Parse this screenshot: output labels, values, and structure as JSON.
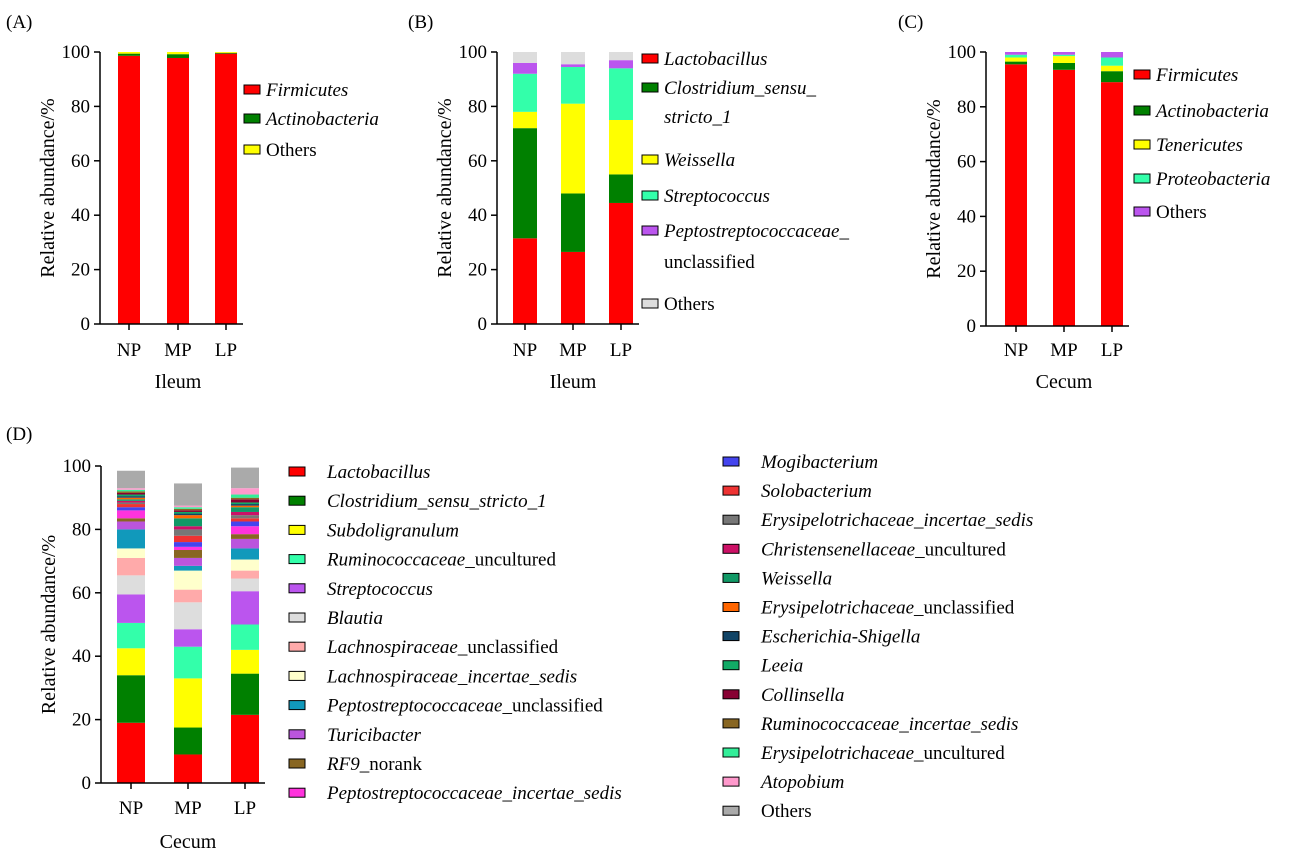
{
  "chart_data": [
    {
      "panel": "(A)",
      "type": "bar",
      "stacked": true,
      "xlabel": "Ileum",
      "ylabel": "Relative abundance/%",
      "ylim": [
        0,
        100
      ],
      "yticks": [
        "0",
        "20",
        "40",
        "60",
        "80",
        "100"
      ],
      "categories": [
        "NP",
        "MP",
        "LP"
      ],
      "series": [
        {
          "name": "Firmicutes",
          "italic": true,
          "suffix": "",
          "color": "#ff0000",
          "values": [
            98.6,
            97.8,
            99.4
          ]
        },
        {
          "name": "Actinobacteria",
          "italic": true,
          "suffix": "",
          "color": "#008000",
          "values": [
            0.8,
            1.4,
            0.3
          ]
        },
        {
          "name": "Others",
          "italic": false,
          "suffix": "",
          "color": "#ffff00",
          "values": [
            0.6,
            0.8,
            0.3
          ]
        }
      ]
    },
    {
      "panel": "(B)",
      "type": "bar",
      "stacked": true,
      "xlabel": "Ileum",
      "ylabel": "Relative abundance/%",
      "ylim": [
        0,
        100
      ],
      "yticks": [
        "0",
        "20",
        "40",
        "60",
        "80",
        "100"
      ],
      "categories": [
        "NP",
        "MP",
        "LP"
      ],
      "series": [
        {
          "name": "Lactobacillus",
          "italic": true,
          "suffix": "",
          "color": "#ff0000",
          "values": [
            31.5,
            26.5,
            44.5
          ]
        },
        {
          "name": "Clostridium_sensu_stricto_1",
          "label_lines": [
            "Clostridium_sensu_",
            "stricto_1"
          ],
          "italic": true,
          "suffix": "",
          "color": "#008000",
          "values": [
            40.5,
            21.5,
            10.5
          ]
        },
        {
          "name": "Weissella",
          "italic": true,
          "suffix": "",
          "color": "#ffff00",
          "values": [
            6.0,
            33.0,
            20.0
          ]
        },
        {
          "name": "Streptococcus",
          "italic": true,
          "suffix": "",
          "color": "#33ffaa",
          "values": [
            14.0,
            13.5,
            19.0
          ]
        },
        {
          "name": "Peptostreptococcaceae_unclassified",
          "label_lines": [
            "Peptostreptococcaceae_",
            "unclassified"
          ],
          "italic_lines": [
            true,
            false
          ],
          "italic": true,
          "suffix": "",
          "color": "#bb55ee",
          "values": [
            4.0,
            1.0,
            3.0
          ]
        },
        {
          "name": "Others",
          "italic": false,
          "suffix": "",
          "color": "#dddddd",
          "values": [
            4.0,
            4.5,
            3.0
          ]
        }
      ]
    },
    {
      "panel": "(C)",
      "type": "bar",
      "stacked": true,
      "xlabel": "Cecum",
      "ylabel": "Relative abundance/%",
      "ylim": [
        0,
        100
      ],
      "yticks": [
        "0",
        "20",
        "40",
        "60",
        "80",
        "100"
      ],
      "categories": [
        "NP",
        "MP",
        "LP"
      ],
      "series": [
        {
          "name": "Firmicutes",
          "italic": true,
          "suffix": "",
          "color": "#ff0000",
          "values": [
            95.5,
            93.5,
            89.0
          ]
        },
        {
          "name": "Actinobacteria",
          "italic": true,
          "suffix": "",
          "color": "#008000",
          "values": [
            1.0,
            2.5,
            4.0
          ]
        },
        {
          "name": "Tenericutes",
          "italic": true,
          "suffix": "",
          "color": "#ffff00",
          "values": [
            1.5,
            2.5,
            2.0
          ]
        },
        {
          "name": "Proteobacteria",
          "italic": true,
          "suffix": "",
          "color": "#33ffaa",
          "values": [
            1.0,
            0.5,
            3.0
          ]
        },
        {
          "name": "Others",
          "italic": false,
          "suffix": "",
          "color": "#bb55ee",
          "values": [
            1.0,
            1.0,
            2.0
          ]
        }
      ]
    },
    {
      "panel": "(D)",
      "type": "bar",
      "stacked": true,
      "xlabel": "Cecum",
      "ylabel": "Relative abundance/%",
      "ylim": [
        0,
        100
      ],
      "yticks": [
        "0",
        "20",
        "40",
        "60",
        "80",
        "100"
      ],
      "categories": [
        "NP",
        "MP",
        "LP"
      ],
      "series": [
        {
          "name": "Lactobacillus",
          "italic": true,
          "suffix": "",
          "color": "#ff0000",
          "values": [
            19,
            9,
            21.5
          ]
        },
        {
          "name": "Clostridium_sensu_stricto_1",
          "italic": true,
          "suffix": "",
          "color": "#008000",
          "values": [
            15,
            8.5,
            13
          ]
        },
        {
          "name": "Subdoligranulum",
          "italic": true,
          "suffix": "",
          "color": "#ffff00",
          "values": [
            8.5,
            15.5,
            7.5
          ]
        },
        {
          "name": "Ruminococcaceae",
          "italic": true,
          "suffix": "_uncultured",
          "color": "#33ffaa",
          "values": [
            8,
            10,
            8
          ]
        },
        {
          "name": "Streptococcus",
          "italic": true,
          "suffix": "",
          "color": "#bb55ee",
          "values": [
            9,
            5.5,
            10.5
          ]
        },
        {
          "name": "Blautia",
          "italic": true,
          "suffix": "",
          "color": "#dddddd",
          "values": [
            6,
            8.5,
            4
          ]
        },
        {
          "name": "Lachnospiraceae",
          "italic": true,
          "suffix": "_unclassified",
          "color": "#ffaaaa",
          "values": [
            5.5,
            4,
            2.5
          ]
        },
        {
          "name": "Lachnospiraceae_incertae_sedis",
          "italic": true,
          "suffix": "",
          "color": "#ffffcc",
          "values": [
            3,
            6,
            3.5
          ]
        },
        {
          "name": "Peptostreptococcaceae",
          "italic": true,
          "suffix": "_unclassified",
          "color": "#1199bb",
          "values": [
            6,
            1.5,
            3.5
          ]
        },
        {
          "name": "Turicibacter",
          "italic": true,
          "suffix": "",
          "color": "#bb55dd",
          "values": [
            2.5,
            2.5,
            3
          ]
        },
        {
          "name": "RF9",
          "italic": true,
          "suffix": "_norank",
          "color": "#886622",
          "values": [
            1,
            2.5,
            1.5
          ]
        },
        {
          "name": "Peptostreptococcaceae_incertae_sedis",
          "italic": true,
          "suffix": "",
          "color": "#ff33dd",
          "values": [
            2.5,
            1,
            2.5
          ]
        },
        {
          "name": "Mogibacterium",
          "italic": true,
          "suffix": "",
          "color": "#4444ee",
          "values": [
            1,
            1.5,
            1.5
          ]
        },
        {
          "name": "Solobacterium",
          "italic": true,
          "suffix": "",
          "color": "#ee3333",
          "values": [
            1,
            2,
            1
          ]
        },
        {
          "name": "Erysipelotrichaceae_incertae_sedis",
          "italic": true,
          "suffix": "",
          "color": "#777777",
          "values": [
            0.5,
            2,
            1
          ]
        },
        {
          "name": "Christensenellaceae",
          "italic": true,
          "suffix": "_uncultured",
          "color": "#cc1166",
          "values": [
            0.5,
            1,
            1
          ]
        },
        {
          "name": "Weissella",
          "italic": true,
          "suffix": "",
          "color": "#119966",
          "values": [
            0.5,
            2.5,
            1.5
          ]
        },
        {
          "name": "Erysipelotrichaceae",
          "italic": true,
          "suffix": "_unclassified",
          "color": "#ff6600",
          "values": [
            0.5,
            1,
            0.5
          ]
        },
        {
          "name": "Escherichia-Shigella",
          "italic": true,
          "suffix": "",
          "color": "#114466",
          "values": [
            0.5,
            0.5,
            0.5
          ]
        },
        {
          "name": "Leeia",
          "italic": true,
          "suffix": "",
          "color": "#11aa66",
          "values": [
            0.5,
            0.5,
            0.5
          ]
        },
        {
          "name": "Collinsella",
          "italic": true,
          "suffix": "",
          "color": "#880033",
          "values": [
            0.5,
            0.5,
            1
          ]
        },
        {
          "name": "Ruminococcaceae_incertae_sedis",
          "italic": true,
          "suffix": "",
          "color": "#886622",
          "values": [
            0.5,
            0.5,
            0.5
          ]
        },
        {
          "name": "Erysipelotrichaceae",
          "italic": true,
          "suffix": "_uncultured",
          "color": "#33ee99",
          "values": [
            0.5,
            0.5,
            1
          ]
        },
        {
          "name": "Atopobium",
          "italic": true,
          "suffix": "",
          "color": "#ff99cc",
          "values": [
            0.5,
            0.5,
            2
          ]
        },
        {
          "name": "Others",
          "italic": false,
          "suffix": "",
          "color": "#aaaaaa",
          "values": [
            5.5,
            7,
            6.5
          ]
        }
      ]
    }
  ]
}
